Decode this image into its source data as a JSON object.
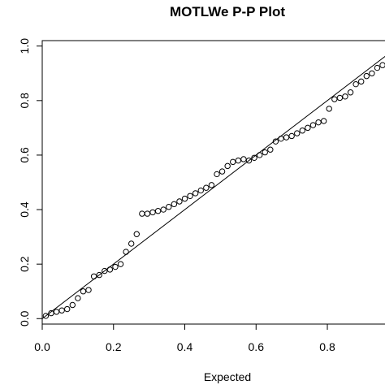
{
  "chart_data": {
    "type": "scatter",
    "title": "MOTLWe P-P Plot",
    "xlabel": "Expected",
    "ylabel": "",
    "xlim": [
      0.0,
      0.98
    ],
    "ylim": [
      -0.02,
      1.02
    ],
    "xticks": [
      0.0,
      0.2,
      0.4,
      0.6,
      0.8
    ],
    "xtick_labels": [
      "0.0",
      "0.2",
      "0.4",
      "0.6",
      "0.8"
    ],
    "yticks": [
      0.0,
      0.2,
      0.4,
      0.6,
      0.8,
      1.0
    ],
    "ytick_labels": [
      "0.0",
      "0.2",
      "0.4",
      "0.6",
      "0.8",
      "1.0"
    ],
    "grid": false,
    "legend": "none",
    "colors": {
      "points": "#000000",
      "reference_line": "#000000",
      "axes": "#000000"
    },
    "reference_line": {
      "x": [
        0.0,
        0.98
      ],
      "y": [
        0.0,
        0.98
      ]
    },
    "points": {
      "x": [
        0.01,
        0.025,
        0.04,
        0.055,
        0.07,
        0.085,
        0.1,
        0.115,
        0.13,
        0.145,
        0.16,
        0.175,
        0.19,
        0.205,
        0.22,
        0.235,
        0.25,
        0.265,
        0.28,
        0.295,
        0.31,
        0.325,
        0.34,
        0.355,
        0.37,
        0.385,
        0.4,
        0.415,
        0.43,
        0.445,
        0.46,
        0.475,
        0.49,
        0.505,
        0.52,
        0.535,
        0.55,
        0.565,
        0.58,
        0.595,
        0.61,
        0.625,
        0.64,
        0.655,
        0.67,
        0.685,
        0.7,
        0.715,
        0.73,
        0.745,
        0.76,
        0.775,
        0.79,
        0.805,
        0.82,
        0.835,
        0.85,
        0.865,
        0.88,
        0.895,
        0.91,
        0.925,
        0.94,
        0.955,
        0.97
      ],
      "y": [
        0.01,
        0.02,
        0.025,
        0.03,
        0.035,
        0.05,
        0.075,
        0.1,
        0.105,
        0.155,
        0.16,
        0.175,
        0.18,
        0.19,
        0.2,
        0.245,
        0.275,
        0.31,
        0.385,
        0.385,
        0.39,
        0.395,
        0.4,
        0.41,
        0.42,
        0.43,
        0.44,
        0.45,
        0.46,
        0.47,
        0.48,
        0.49,
        0.53,
        0.54,
        0.56,
        0.575,
        0.58,
        0.585,
        0.58,
        0.59,
        0.6,
        0.61,
        0.62,
        0.65,
        0.66,
        0.665,
        0.67,
        0.68,
        0.69,
        0.7,
        0.71,
        0.72,
        0.725,
        0.77,
        0.805,
        0.81,
        0.815,
        0.83,
        0.86,
        0.87,
        0.89,
        0.9,
        0.92,
        0.93,
        0.96
      ]
    }
  }
}
